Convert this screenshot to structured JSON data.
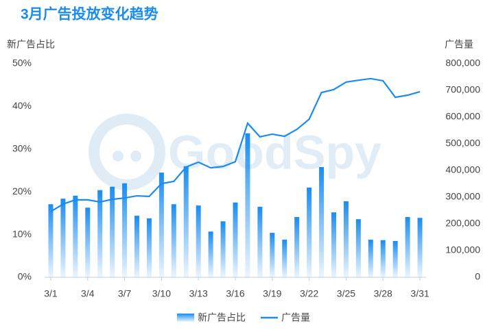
{
  "chart_data": {
    "type": "bar-line",
    "title": "3月广告投放变化趋势",
    "watermark": "GoodSpy",
    "y_label": "新广告占比",
    "y2_label": "广告量",
    "categories": [
      "3/1",
      null,
      null,
      "3/4",
      null,
      null,
      "3/7",
      null,
      null,
      "3/10",
      null,
      null,
      "3/13",
      null,
      null,
      "3/16",
      null,
      null,
      "3/19",
      null,
      null,
      "3/22",
      null,
      null,
      "3/25",
      null,
      null,
      "3/28",
      null,
      null,
      "3/31"
    ],
    "series": [
      {
        "name": "新广告占比",
        "type": "bar",
        "color": "#1a8cf0",
        "values": [
          17.1,
          18.4,
          19.1,
          16.3,
          20.4,
          21.2,
          22.0,
          14.4,
          13.8,
          24.5,
          17.1,
          26.0,
          16.8,
          10.7,
          13.1,
          17.5,
          33.7,
          16.5,
          10.4,
          8.8,
          14.1,
          21.0,
          25.8,
          15.2,
          17.8,
          13.6,
          8.8,
          8.7,
          8.5,
          14.1,
          13.9
        ]
      },
      {
        "name": "广告量",
        "type": "line",
        "axis": "y2",
        "color": "#1a8cf0",
        "values": [
          246000,
          274000,
          290000,
          290000,
          282000,
          292000,
          297000,
          305000,
          303000,
          351000,
          359000,
          413000,
          431000,
          410000,
          415000,
          433000,
          577000,
          526000,
          536000,
          528000,
          554000,
          592000,
          692000,
          703000,
          731000,
          738000,
          744000,
          736000,
          674000,
          682000,
          695000
        ]
      }
    ],
    "ylim": [
      0,
      50
    ],
    "yticks": [
      {
        "value": 0,
        "label": "0%"
      },
      {
        "value": 10,
        "label": "10%"
      },
      {
        "value": 20,
        "label": "20%"
      },
      {
        "value": 30,
        "label": "30%"
      },
      {
        "value": 40,
        "label": "40%"
      },
      {
        "value": 50,
        "label": "50%"
      }
    ],
    "y2lim": [
      0,
      800000
    ],
    "y2ticks": [
      0,
      {
        "value": 100000,
        "label": "100,000"
      },
      {
        "value": 200000,
        "label": "200,000"
      },
      {
        "value": 300000,
        "label": "300,000"
      },
      {
        "value": 400000,
        "label": "400,000"
      },
      {
        "value": 500000,
        "label": "500,000"
      },
      {
        "value": 600000,
        "label": "600,000"
      },
      {
        "value": 700000,
        "label": "700,000"
      },
      {
        "value": 800000,
        "label": "800,000"
      }
    ],
    "grid": false,
    "legend": "bottom"
  }
}
